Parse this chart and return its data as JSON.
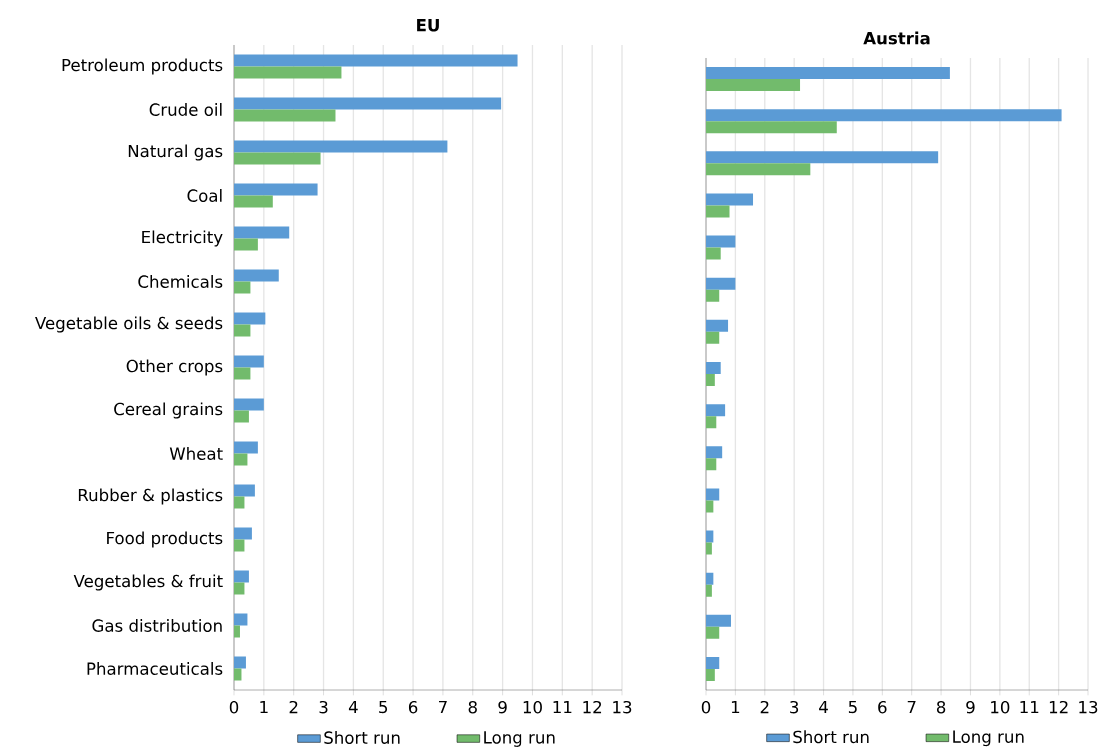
{
  "chart_data": [
    {
      "type": "bar",
      "orientation": "horizontal",
      "title": "EU",
      "categories": [
        "Petroleum products",
        "Crude oil",
        "Natural gas",
        "Coal",
        "Electricity",
        "Chemicals",
        "Vegetable oils & seeds",
        "Other crops",
        "Cereal grains",
        "Wheat",
        "Rubber & plastics",
        "Food products",
        "Vegetables & fruit",
        "Gas distribution",
        "Pharmaceuticals"
      ],
      "series": [
        {
          "name": "Short run",
          "color": "#5b9bd5",
          "values": [
            9.5,
            8.95,
            7.15,
            2.8,
            1.85,
            1.5,
            1.05,
            1.0,
            1.0,
            0.8,
            0.7,
            0.6,
            0.5,
            0.45,
            0.4
          ]
        },
        {
          "name": "Long run",
          "color": "#72bb6c",
          "values": [
            3.6,
            3.4,
            2.9,
            1.3,
            0.8,
            0.55,
            0.55,
            0.55,
            0.5,
            0.45,
            0.35,
            0.35,
            0.35,
            0.2,
            0.25
          ]
        }
      ],
      "xlim": [
        0,
        13
      ],
      "xticks": [
        0,
        1,
        2,
        3,
        4,
        5,
        6,
        7,
        8,
        9,
        10,
        11,
        12,
        13
      ],
      "grid": "x",
      "legend": "bottom"
    },
    {
      "type": "bar",
      "orientation": "horizontal",
      "title": "Austria",
      "categories": [
        null,
        null,
        null,
        null,
        null,
        null,
        null,
        null,
        null,
        null,
        null,
        null,
        null,
        null,
        null
      ],
      "series": [
        {
          "name": "Short run",
          "color": "#5b9bd5",
          "values": [
            8.3,
            12.1,
            7.9,
            1.6,
            1.0,
            1.0,
            0.75,
            0.5,
            0.65,
            0.55,
            0.45,
            0.25,
            0.25,
            0.85,
            0.45
          ]
        },
        {
          "name": "Long run",
          "color": "#72bb6c",
          "values": [
            3.2,
            4.45,
            3.55,
            0.8,
            0.5,
            0.45,
            0.45,
            0.3,
            0.35,
            0.35,
            0.25,
            0.2,
            0.2,
            0.45,
            0.3
          ]
        }
      ],
      "xlim": [
        0,
        13
      ],
      "xticks": [
        0,
        1,
        2,
        3,
        4,
        5,
        6,
        7,
        8,
        9,
        10,
        11,
        12,
        13
      ],
      "grid": "x",
      "legend": "bottom"
    }
  ]
}
